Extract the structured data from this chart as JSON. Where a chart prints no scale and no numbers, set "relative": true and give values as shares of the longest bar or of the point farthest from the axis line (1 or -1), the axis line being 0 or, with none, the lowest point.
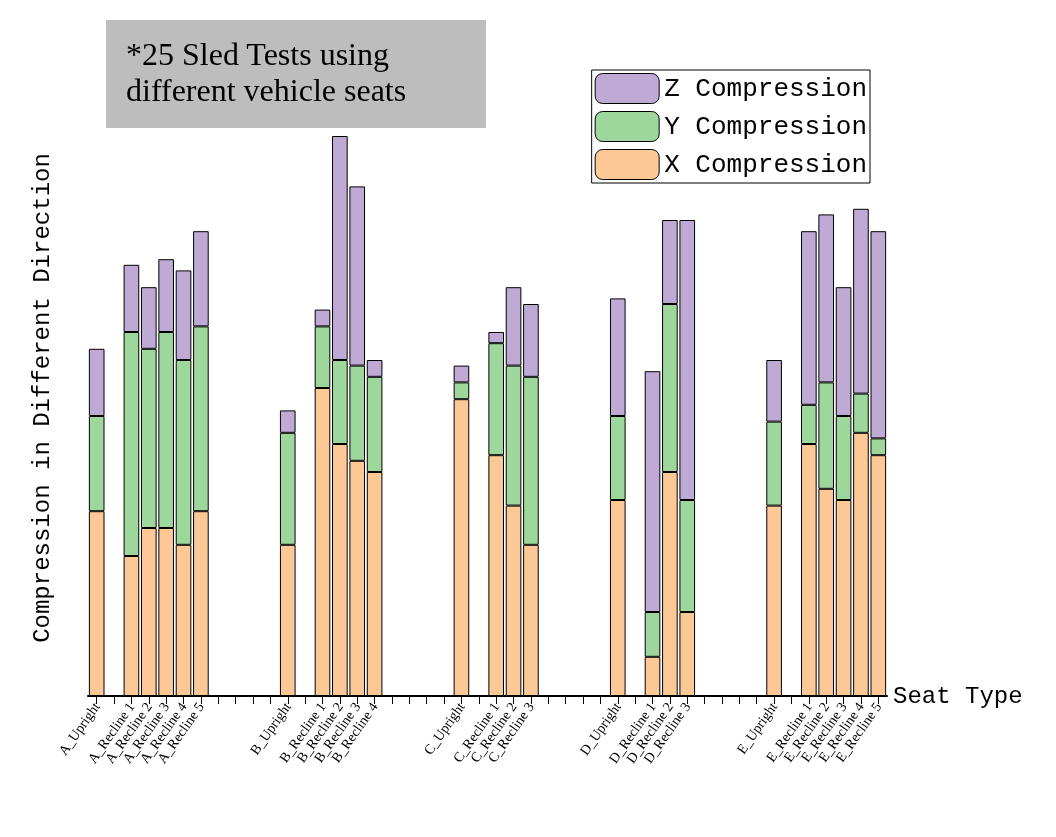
{
  "chart_data": {
    "type": "bar",
    "stacked": true,
    "relative": true,
    "xlabel": "Seat Type",
    "ylabel": "Compression in Different Direction",
    "annotations": [
      "*25 Sled Tests using different vehicle seats"
    ],
    "legend": "top right",
    "grid": false,
    "categories": [
      "A_Upright",
      null,
      "A_Recline 1",
      "A_Recline 2",
      "A_Recline 3",
      "A_Recline 4",
      "A_Recline 5",
      null,
      null,
      null,
      null,
      "B_Upright",
      null,
      "B_Recline 1",
      "B_Recline 2",
      "B_Recline 3",
      "B_Recline 4",
      null,
      null,
      null,
      null,
      "C_Upright",
      null,
      "C_Recline 1",
      "C_Recline 2",
      "C_Recline 3",
      null,
      null,
      null,
      null,
      "D_Upright",
      null,
      "D_Recline 1",
      "D_Recline 2",
      "D_Recline 3",
      null,
      null,
      null,
      null,
      "E_Upright",
      null,
      "E_Recline 1",
      "E_Recline 2",
      "E_Recline 3",
      "E_Recline 4",
      "E_Recline 5"
    ],
    "series": [
      {
        "name": "X Compression",
        "color": "#fcc896",
        "values": [
          0.33,
          null,
          0.25,
          0.3,
          0.3,
          0.27,
          0.33,
          null,
          null,
          null,
          null,
          0.27,
          null,
          0.55,
          0.45,
          0.42,
          0.4,
          null,
          null,
          null,
          null,
          0.53,
          null,
          0.43,
          0.34,
          0.27,
          null,
          null,
          null,
          null,
          0.35,
          null,
          0.07,
          0.4,
          0.15,
          null,
          null,
          null,
          null,
          0.34,
          null,
          0.45,
          0.37,
          0.35,
          0.47,
          0.43
        ]
      },
      {
        "name": "Y Compression",
        "color": "#9ed79b",
        "values": [
          0.17,
          null,
          0.4,
          0.32,
          0.35,
          0.33,
          0.33,
          null,
          null,
          null,
          null,
          0.2,
          null,
          0.11,
          0.15,
          0.17,
          0.17,
          null,
          null,
          null,
          null,
          0.03,
          null,
          0.2,
          0.25,
          0.3,
          null,
          null,
          null,
          null,
          0.15,
          null,
          0.08,
          0.3,
          0.2,
          null,
          null,
          null,
          null,
          0.15,
          null,
          0.07,
          0.19,
          0.15,
          0.07,
          0.03
        ]
      },
      {
        "name": "Z Compression",
        "color": "#bfaad6",
        "values": [
          0.12,
          null,
          0.12,
          0.11,
          0.13,
          0.16,
          0.17,
          null,
          null,
          null,
          null,
          0.04,
          null,
          0.03,
          0.4,
          0.32,
          0.03,
          null,
          null,
          null,
          null,
          0.03,
          null,
          0.02,
          0.14,
          0.13,
          null,
          null,
          null,
          null,
          0.21,
          null,
          0.43,
          0.15,
          0.5,
          null,
          null,
          null,
          null,
          0.11,
          null,
          0.31,
          0.3,
          0.23,
          0.33,
          0.37
        ]
      }
    ]
  }
}
